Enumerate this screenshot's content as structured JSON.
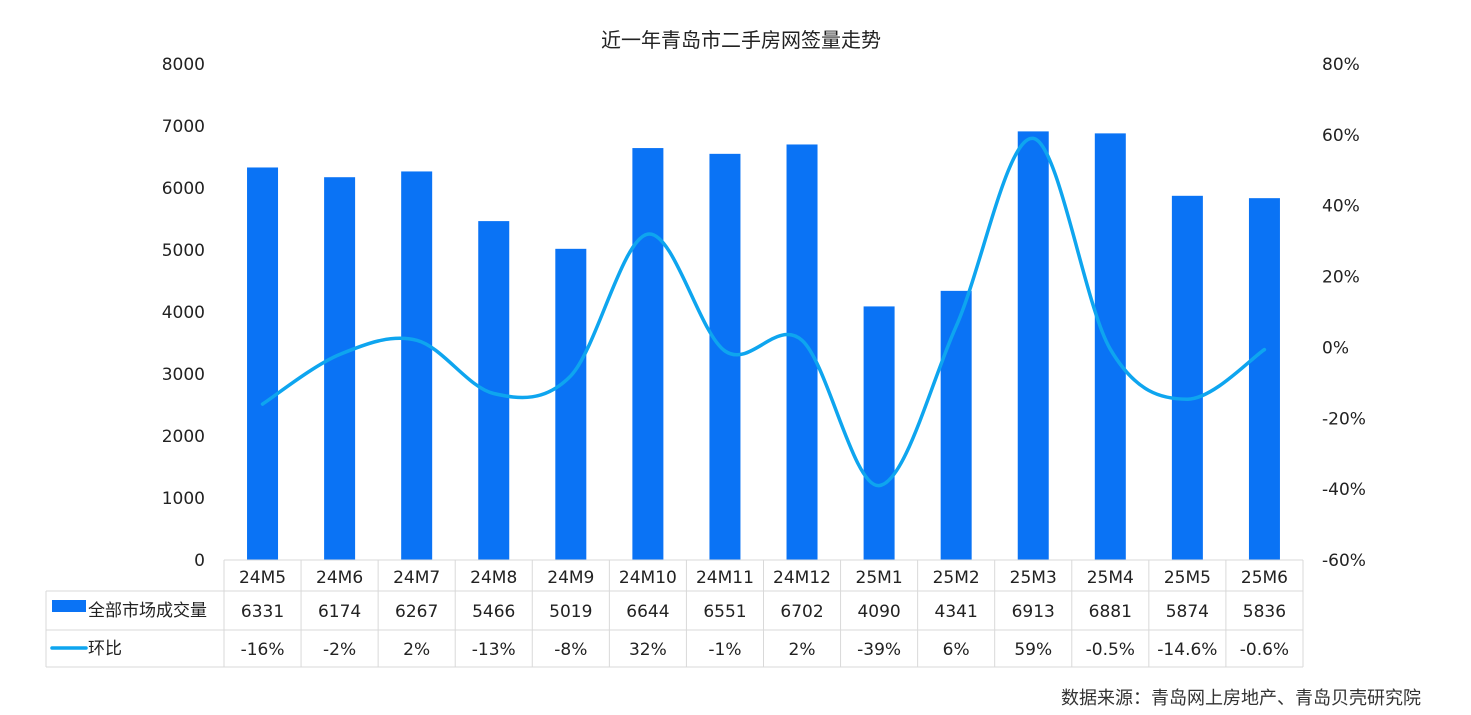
{
  "chart_data": {
    "type": "bar+line",
    "title": "近一年青岛市二手房网签量走势",
    "categories": [
      "24M5",
      "24M6",
      "24M7",
      "24M8",
      "24M9",
      "24M10",
      "24M11",
      "24M12",
      "25M1",
      "25M2",
      "25M3",
      "25M4",
      "25M5",
      "25M6"
    ],
    "series": [
      {
        "name": "全部市场成交量",
        "type": "bar",
        "axis": "left",
        "values": [
          6331,
          6174,
          6267,
          5466,
          5019,
          6644,
          6551,
          6702,
          4090,
          4341,
          6913,
          6881,
          5874,
          5836
        ],
        "labels": [
          "6331",
          "6174",
          "6267",
          "5466",
          "5019",
          "6644",
          "6551",
          "6702",
          "4090",
          "4341",
          "6913",
          "6881",
          "5874",
          "5836"
        ]
      },
      {
        "name": "环比",
        "type": "line",
        "axis": "right",
        "smooth": true,
        "values": [
          -16,
          -2,
          2,
          -13,
          -8,
          32,
          -1,
          2,
          -39,
          6,
          59,
          -0.5,
          -14.6,
          -0.6
        ],
        "labels": [
          "-16%",
          "-2%",
          "2%",
          "-13%",
          "-8%",
          "32%",
          "-1%",
          "2%",
          "-39%",
          "6%",
          "59%",
          "-0.5%",
          "-14.6%",
          "-0.6%"
        ]
      }
    ],
    "y_left": {
      "min": 0,
      "max": 8000,
      "ticks": [
        "0",
        "1000",
        "2000",
        "3000",
        "4000",
        "5000",
        "6000",
        "7000",
        "8000"
      ]
    },
    "y_right": {
      "min": -60,
      "max": 80,
      "ticks": [
        "-60%",
        "-40%",
        "-20%",
        "0%",
        "20%",
        "40%",
        "60%",
        "80%"
      ]
    },
    "data_table": true,
    "source": "数据来源：青岛网上房地产、青岛贝壳研究院"
  },
  "colors": {
    "bar": "#0A73F5",
    "line": "#0EA5EF",
    "grid": "#D9D9D9",
    "text": "#222222"
  }
}
